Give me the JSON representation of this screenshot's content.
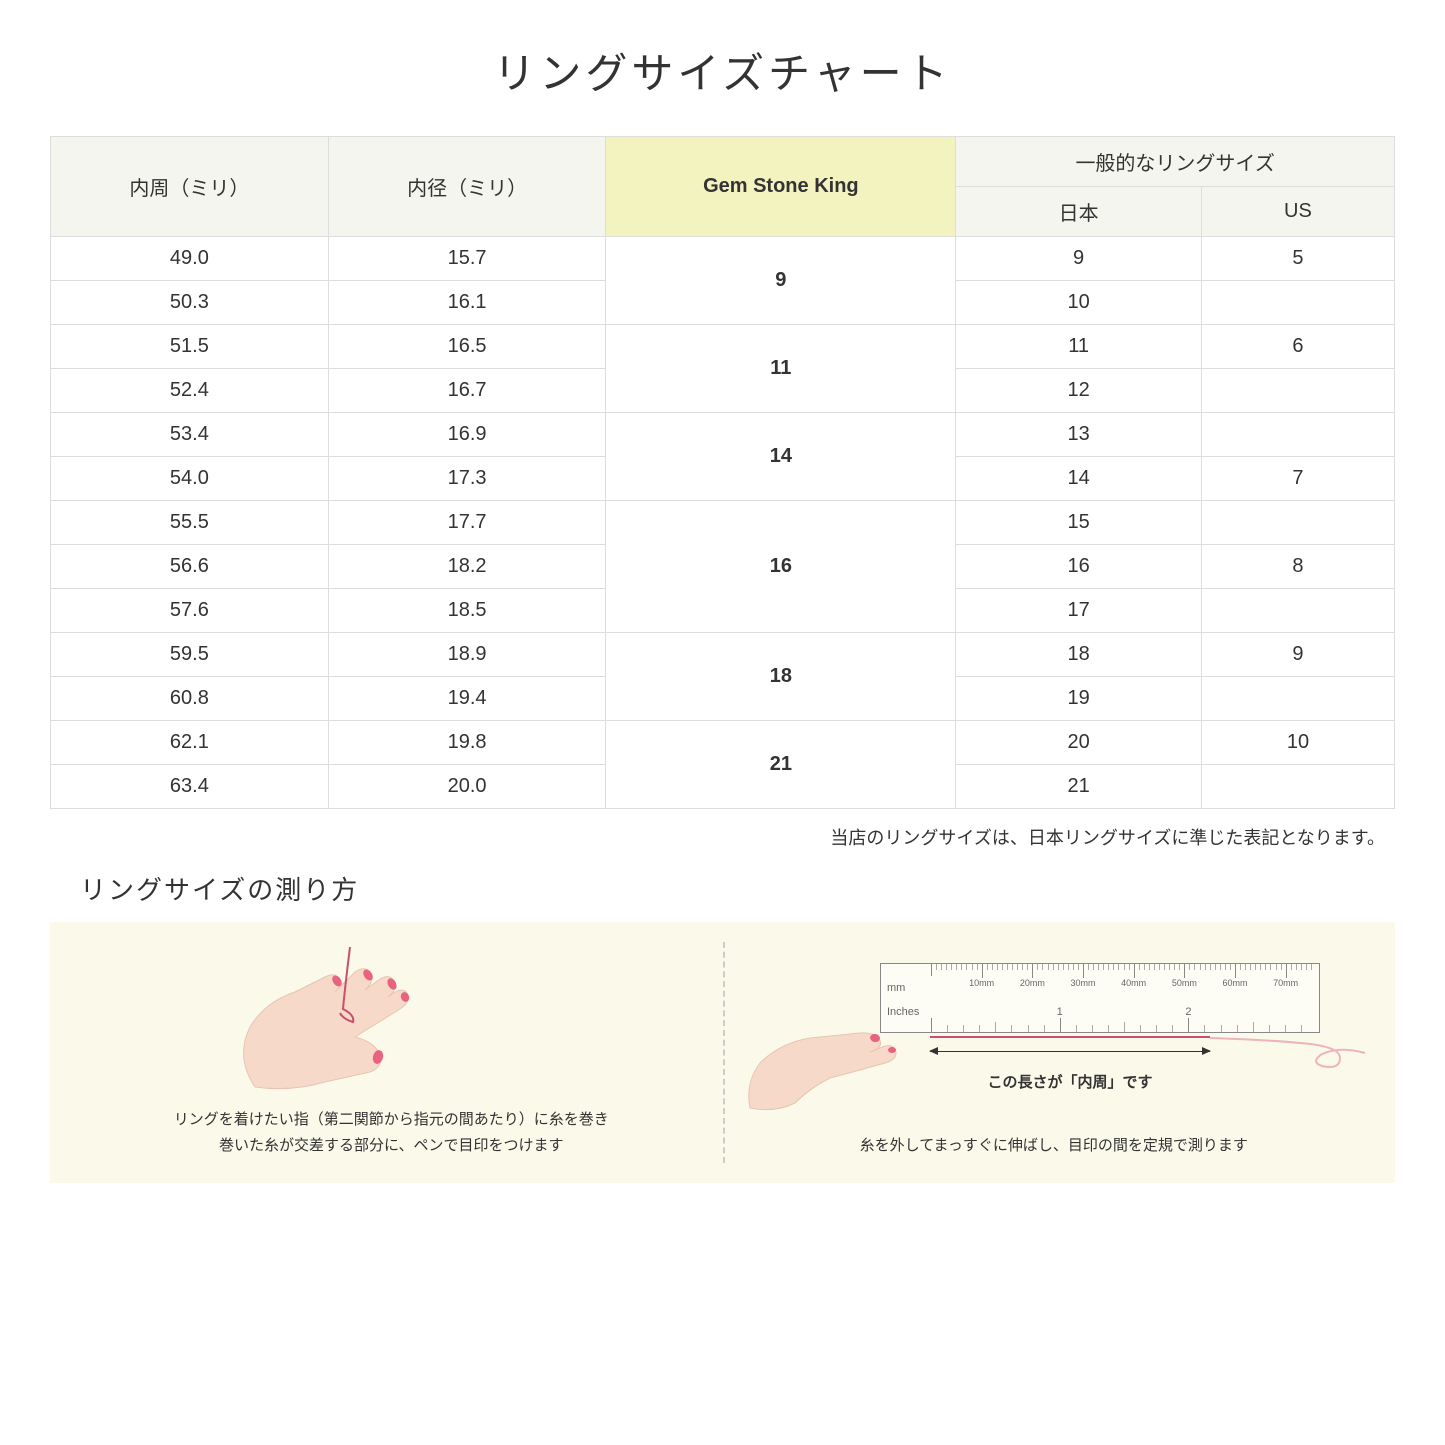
{
  "title": "リングサイズチャート",
  "headers": {
    "circumference": "内周（ミリ）",
    "diameter": "内径（ミリ）",
    "gsk": "Gem Stone King",
    "general": "一般的なリングサイズ",
    "japan": "日本",
    "us": "US"
  },
  "groups": [
    {
      "gsk": "9",
      "rows": [
        {
          "circ": "49.0",
          "dia": "15.7",
          "jp": "9",
          "us": "5"
        },
        {
          "circ": "50.3",
          "dia": "16.1",
          "jp": "10",
          "us": ""
        }
      ]
    },
    {
      "gsk": "11",
      "rows": [
        {
          "circ": "51.5",
          "dia": "16.5",
          "jp": "11",
          "us": "6"
        },
        {
          "circ": "52.4",
          "dia": "16.7",
          "jp": "12",
          "us": ""
        }
      ]
    },
    {
      "gsk": "14",
      "rows": [
        {
          "circ": "53.4",
          "dia": "16.9",
          "jp": "13",
          "us": ""
        },
        {
          "circ": "54.0",
          "dia": "17.3",
          "jp": "14",
          "us": "7"
        }
      ]
    },
    {
      "gsk": "16",
      "rows": [
        {
          "circ": "55.5",
          "dia": "17.7",
          "jp": "15",
          "us": ""
        },
        {
          "circ": "56.6",
          "dia": "18.2",
          "jp": "16",
          "us": "8"
        },
        {
          "circ": "57.6",
          "dia": "18.5",
          "jp": "17",
          "us": ""
        }
      ]
    },
    {
      "gsk": "18",
      "rows": [
        {
          "circ": "59.5",
          "dia": "18.9",
          "jp": "18",
          "us": "9"
        },
        {
          "circ": "60.8",
          "dia": "19.4",
          "jp": "19",
          "us": ""
        }
      ]
    },
    {
      "gsk": "21",
      "rows": [
        {
          "circ": "62.1",
          "dia": "19.8",
          "jp": "20",
          "us": "10"
        },
        {
          "circ": "63.4",
          "dia": "20.0",
          "jp": "21",
          "us": ""
        }
      ]
    }
  ],
  "note": "当店のリングサイズは、日本リングサイズに準じた表記となります。",
  "howto": {
    "title": "リングサイズの測り方",
    "step1": "リングを着けたい指（第二関節から指元の間あたり）に糸を巻き\n巻いた糸が交差する部分に、ペンで目印をつけます",
    "step2": "糸を外してまっすぐに伸ばし、目印の間を定規で測ります",
    "measure_label": "この長さが「内周」です",
    "ruler_mm": "mm",
    "ruler_in": "Inches",
    "mm_marks": [
      "10mm",
      "20mm",
      "30mm",
      "40mm",
      "50mm",
      "60mm",
      "70mm"
    ],
    "in_marks": [
      "1",
      "2"
    ]
  },
  "colors": {
    "header_bg": "#f5f5f0",
    "gsk_bg": "#f3f3c0",
    "panel_bg": "#faf9ea",
    "skin": "#f7d9c9",
    "nail": "#e8637f",
    "thread": "#c94f6d",
    "border": "#dddddd"
  }
}
